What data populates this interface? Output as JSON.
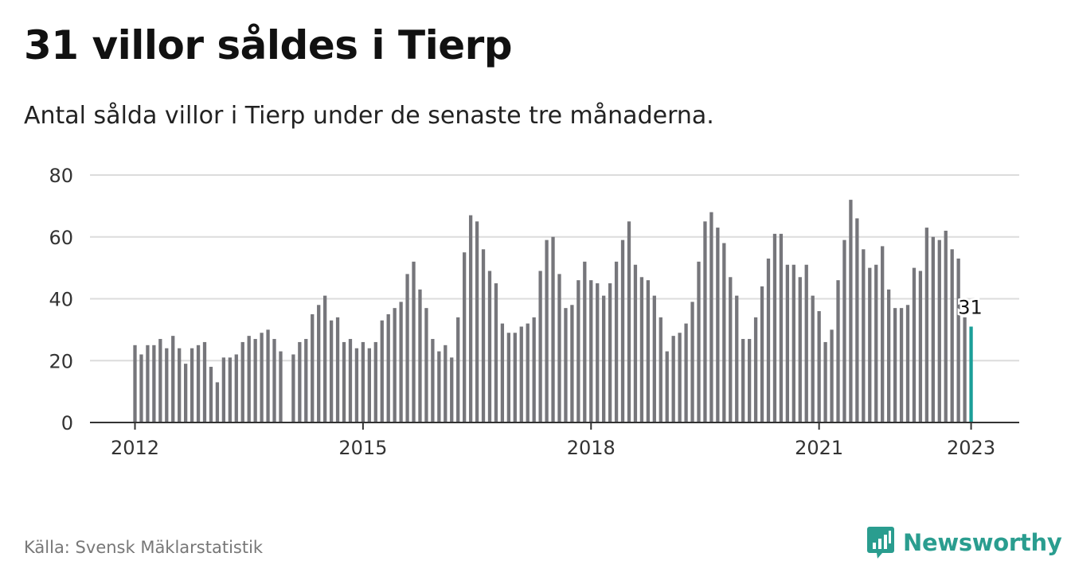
{
  "header": {
    "title": "31 villor såldes i Tierp",
    "subtitle": "Antal sålda villor i Tierp under de senaste tre månaderna."
  },
  "footer": {
    "source": "Källa: Svensk Mäklarstatistik",
    "brand": "Newsworthy",
    "logo_icon": "newsworthy-chart-bubble-icon"
  },
  "colors": {
    "bar": "#76767b",
    "highlight": "#1a9e98",
    "brand": "#2a9d8f",
    "grid": "#dcdcdc",
    "axis": "#333333"
  },
  "chart_data": {
    "type": "bar",
    "x_unit": "month",
    "first_month": "2012-01",
    "last_month": "2023-01",
    "ylim": [
      0,
      80
    ],
    "yticks": [
      0,
      20,
      40,
      60,
      80
    ],
    "xticks": [
      "2012",
      "2015",
      "2018",
      "2021",
      "2023"
    ],
    "grid": true,
    "highlight_label": "31",
    "values": [
      25,
      22,
      25,
      25,
      27,
      24,
      28,
      24,
      19,
      24,
      25,
      26,
      18,
      13,
      21,
      21,
      22,
      26,
      28,
      27,
      29,
      30,
      27,
      23,
      null,
      22,
      26,
      27,
      35,
      38,
      41,
      33,
      34,
      26,
      27,
      24,
      26,
      24,
      26,
      33,
      35,
      37,
      39,
      48,
      52,
      43,
      37,
      27,
      23,
      25,
      21,
      34,
      55,
      67,
      65,
      56,
      49,
      45,
      32,
      29,
      29,
      31,
      32,
      34,
      49,
      59,
      60,
      48,
      37,
      38,
      46,
      52,
      46,
      45,
      41,
      45,
      52,
      59,
      65,
      51,
      47,
      46,
      41,
      34,
      23,
      28,
      29,
      32,
      39,
      52,
      65,
      68,
      63,
      58,
      47,
      41,
      27,
      27,
      34,
      44,
      53,
      61,
      61,
      51,
      51,
      47,
      51,
      41,
      36,
      26,
      30,
      46,
      59,
      72,
      66,
      56,
      50,
      51,
      57,
      43,
      37,
      37,
      38,
      50,
      49,
      63,
      60,
      59,
      62,
      56,
      53,
      34,
      31
    ]
  }
}
